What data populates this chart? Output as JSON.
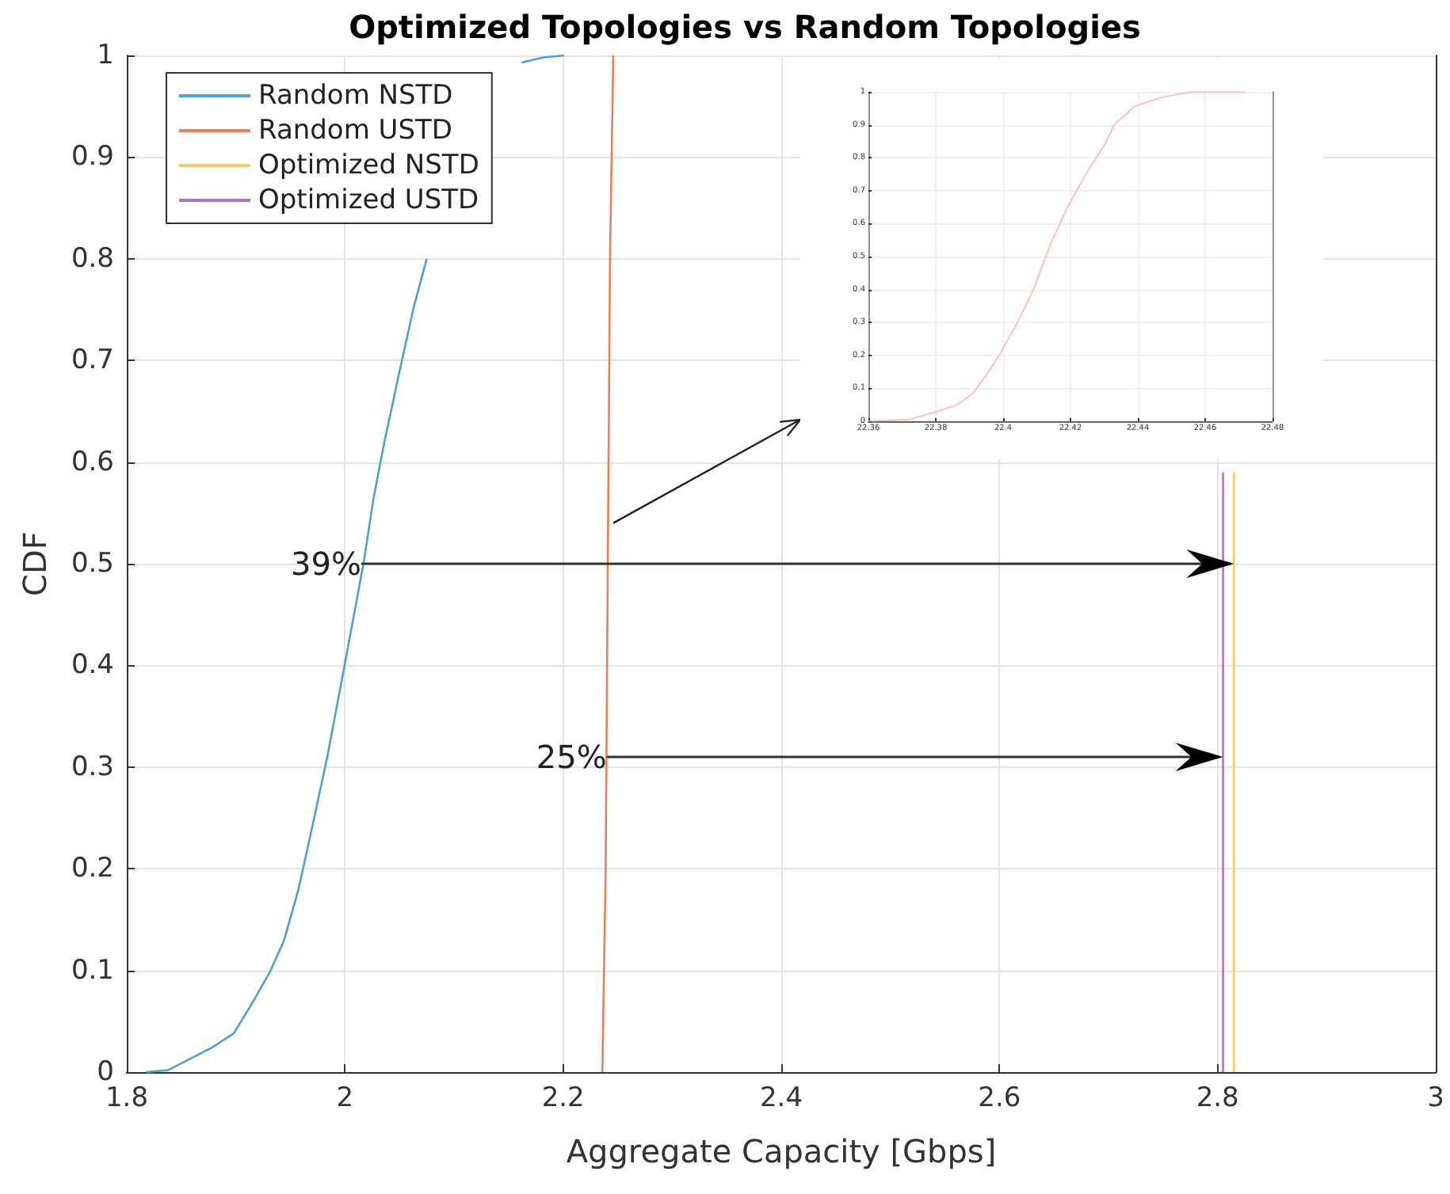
{
  "chart_data": [
    {
      "type": "line",
      "title": "Optimized Topologies vs Random Topologies",
      "xlabel": "Aggregate Capacity [Gbps]",
      "ylabel": "CDF",
      "xlim": [
        1.8,
        3
      ],
      "xticks": [
        1.8,
        2,
        2.2,
        2.4,
        2.6,
        2.8,
        3
      ],
      "ylim": [
        0,
        1
      ],
      "yticks": [
        0,
        0.1,
        0.2,
        0.3,
        0.4,
        0.5,
        0.6,
        0.7,
        0.8,
        0.9,
        1
      ],
      "grid": true,
      "legend": "top left",
      "annotations": [
        {
          "text": "39%",
          "x": 2.015,
          "y": 0.5
        },
        {
          "text": "25%",
          "x": 2.24,
          "y": 0.31
        }
      ],
      "series": [
        {
          "name": "Random NSTD",
          "color": "#4d9fd8",
          "x": [
            1.818,
            1.838,
            1.858,
            1.878,
            1.898,
            1.914,
            1.931,
            1.944,
            1.957,
            1.97,
            1.984,
            2.0,
            2.017,
            2.026,
            2.036,
            2.05,
            2.063,
            2.075,
            2.12,
            2.162,
            2.182,
            2.201
          ],
          "values": [
            0,
            0.002,
            0.013,
            0.024,
            0.038,
            0.066,
            0.098,
            0.129,
            0.178,
            0.241,
            0.311,
            0.402,
            0.5,
            0.563,
            0.619,
            0.689,
            0.752,
            0.8,
            null,
            0.993,
            0.998,
            1
          ]
        },
        {
          "name": "Random USTD",
          "color": "#e8805a",
          "x": [
            2.236,
            2.239,
            2.241,
            2.243,
            2.246
          ],
          "values": [
            0,
            0.2,
            0.5,
            0.8,
            1
          ]
        },
        {
          "name": "Optimized NSTD",
          "color": "#f5c96a",
          "x": [
            2.815,
            2.815
          ],
          "values": [
            0,
            0.59
          ]
        },
        {
          "name": "Optimized USTD",
          "color": "#a877c0",
          "x": [
            2.805,
            2.805
          ],
          "values": [
            0,
            0.59
          ]
        }
      ]
    },
    {
      "type": "line",
      "xlim": [
        22.36,
        22.48
      ],
      "xticks": [
        22.36,
        22.38,
        22.4,
        22.42,
        22.44,
        22.46,
        22.48
      ],
      "ylim": [
        0,
        1
      ],
      "yticks": [
        0,
        0.1,
        0.2,
        0.3,
        0.4,
        0.5,
        0.6,
        0.7,
        0.8,
        0.9,
        1
      ],
      "grid": true,
      "series": [
        {
          "color": "#ffb3b3",
          "x": [
            22.36,
            22.372,
            22.379,
            22.386,
            22.391,
            22.395,
            22.399,
            22.405,
            22.409,
            22.414,
            22.419,
            22.425,
            22.43,
            22.433,
            22.439,
            22.447,
            22.456,
            22.472
          ],
          "values": [
            0,
            0.005,
            0.025,
            0.048,
            0.084,
            0.14,
            0.203,
            0.314,
            0.4,
            0.536,
            0.647,
            0.758,
            0.837,
            0.9,
            0.956,
            0.983,
            1,
            1
          ]
        }
      ]
    }
  ]
}
